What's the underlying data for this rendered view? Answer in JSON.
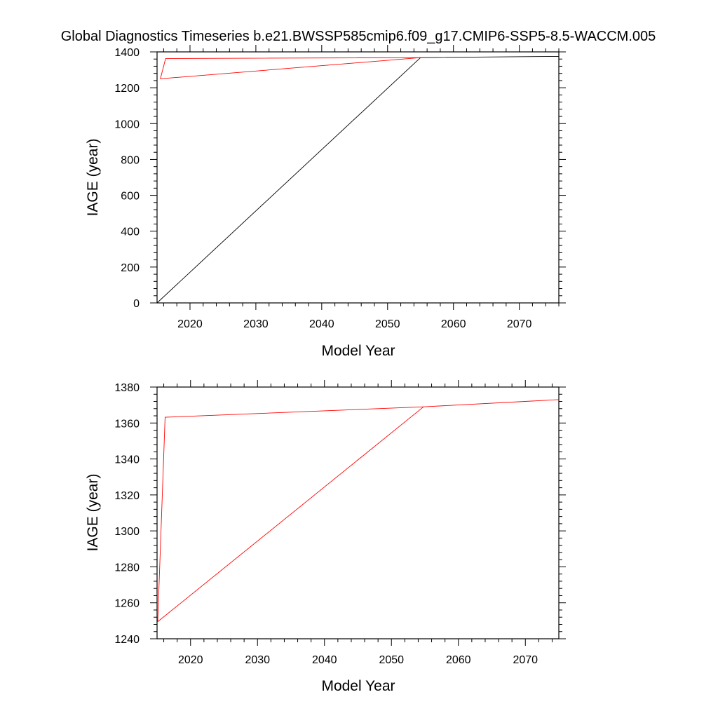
{
  "title": "Global Diagnostics Timeseries b.e21.BWSSP585cmip6.f09_g17.CMIP6-SSP5-8.5-WACCM.005",
  "colors": {
    "black": "#000000",
    "red": "#ff0000"
  },
  "chart_data": [
    {
      "type": "line",
      "xlabel": "Model Year",
      "ylabel": "IAGE (year)",
      "xlim": [
        2015,
        2076
      ],
      "ylim": [
        0,
        1400
      ],
      "x_ticks": [
        2020,
        2030,
        2040,
        2050,
        2060,
        2070
      ],
      "y_ticks": [
        0,
        200,
        400,
        600,
        800,
        1000,
        1200,
        1400
      ],
      "grid": false,
      "series": [
        {
          "color": "#000000",
          "points": [
            [
              2015,
              0
            ],
            [
              2055,
              1368
            ],
            [
              2076,
              1375
            ]
          ]
        },
        {
          "color": "#ff0000",
          "points": [
            [
              2015.5,
              1250
            ],
            [
              2016.3,
              1363
            ],
            [
              2055,
              1368
            ],
            [
              2015.5,
              1250
            ]
          ]
        }
      ]
    },
    {
      "type": "line",
      "xlabel": "Model Year",
      "ylabel": "IAGE (year)",
      "xlim": [
        2015,
        2075
      ],
      "ylim": [
        1240,
        1380
      ],
      "x_ticks": [
        2020,
        2030,
        2040,
        2050,
        2060,
        2070
      ],
      "y_ticks": [
        1240,
        1260,
        1280,
        1300,
        1320,
        1340,
        1360,
        1380
      ],
      "grid": false,
      "series": [
        {
          "color": "#ff0000",
          "points": [
            [
              2015.1,
              1249.5
            ],
            [
              2016.2,
              1363.2
            ],
            [
              2054.8,
              1369
            ],
            [
              2075,
              1373
            ]
          ]
        },
        {
          "color": "#ff0000",
          "points": [
            [
              2015.1,
              1249.5
            ],
            [
              2054.8,
              1369
            ]
          ]
        }
      ]
    }
  ]
}
